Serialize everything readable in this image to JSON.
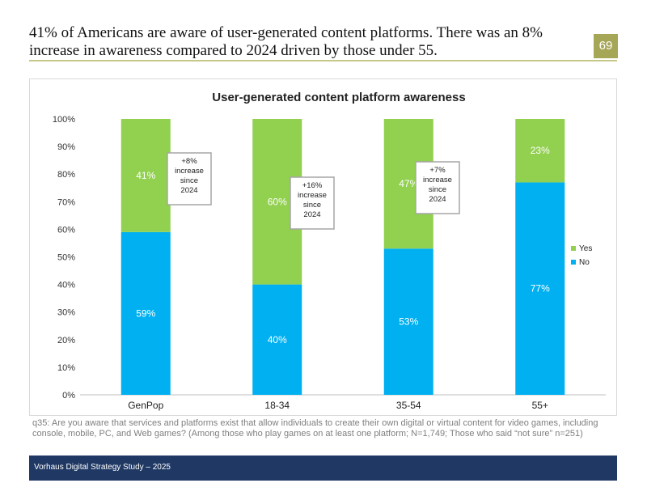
{
  "header": {
    "title_line1": "41% of Americans are aware of user-generated content platforms. There was an 8%",
    "title_line2": "increase in awareness compared to 2024 driven by those under 55.",
    "page_number": "69"
  },
  "colors": {
    "yes": "#92d050",
    "no": "#00b0f0",
    "header_rule": "#c7c78a",
    "page_badge": "#a6a657",
    "footer_bg": "#1f3864"
  },
  "chart_data": {
    "type": "bar",
    "stacked": true,
    "title": "User-generated content platform awareness",
    "categories": [
      "GenPop",
      "18-34",
      "35-54",
      "55+"
    ],
    "series": [
      {
        "name": "No",
        "values": [
          59,
          40,
          53,
          77
        ],
        "labels": [
          "59%",
          "40%",
          "53%",
          "77%"
        ]
      },
      {
        "name": "Yes",
        "values": [
          41,
          60,
          47,
          23
        ],
        "labels": [
          "41%",
          "60%",
          "47%",
          "23%"
        ]
      }
    ],
    "ylim": [
      0,
      100
    ],
    "yticks": [
      "0%",
      "10%",
      "20%",
      "30%",
      "40%",
      "50%",
      "60%",
      "70%",
      "80%",
      "90%",
      "100%"
    ],
    "legend": {
      "position": "right",
      "entries": [
        "Yes",
        "No"
      ]
    },
    "annotations": [
      {
        "category": "GenPop",
        "lines": [
          "+8%",
          "increase",
          "since",
          "2024"
        ]
      },
      {
        "category": "18-34",
        "lines": [
          "+16%",
          "increase",
          "since",
          "2024"
        ]
      },
      {
        "category": "35-54",
        "lines": [
          "+7%",
          "increase",
          "since",
          "2024"
        ]
      }
    ]
  },
  "footnote": "q35: Are you aware that services and platforms exist that allow individuals to create their own digital or virtual content for video games, including console, mobile, PC, and Web games? (Among those who play games on at least one platform; N=1,749; Those who said “not sure” n=251)",
  "footer": {
    "text": "Vorhaus Digital Strategy Study – 2025"
  }
}
